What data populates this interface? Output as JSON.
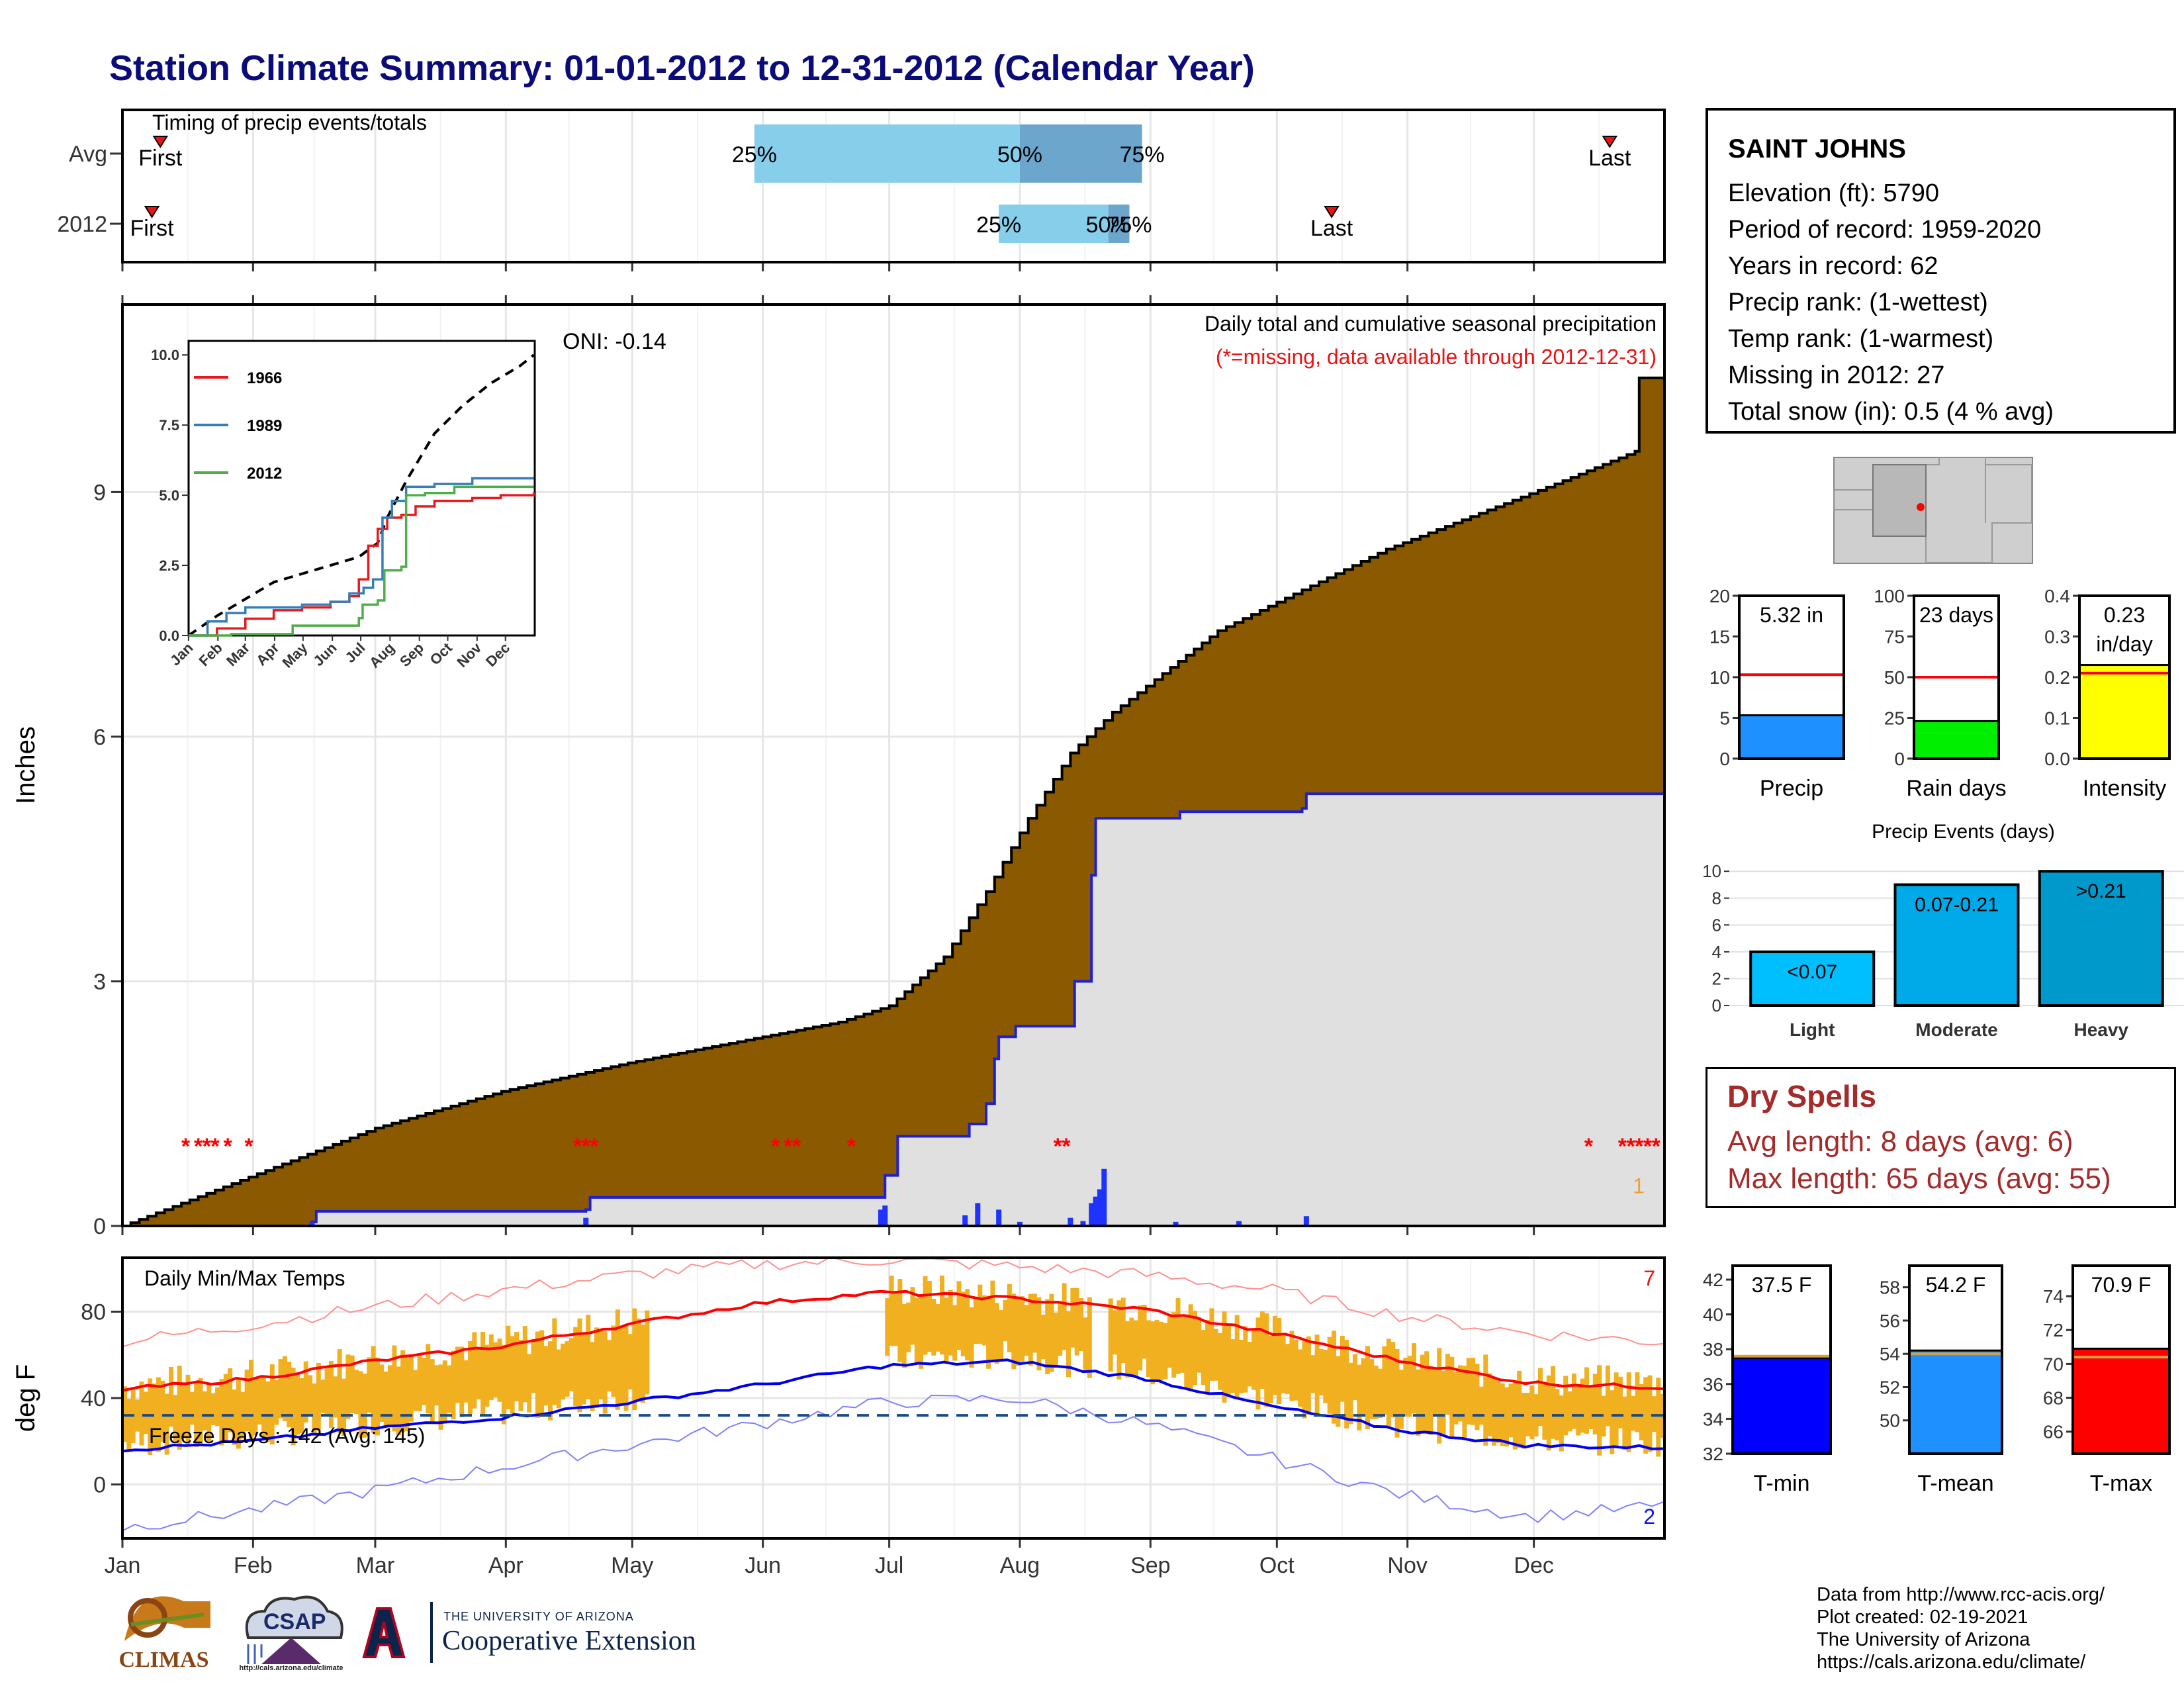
{
  "title": "Station Climate Summary: 01-01-2012 to 12-31-2012 (Calendar Year)",
  "station_info": {
    "name": "SAINT JOHNS",
    "lines": [
      "Elevation (ft): 5790",
      "Period of record: 1959-2020",
      "Years in record: 62",
      "Precip rank:  (1-wettest)",
      "Temp rank:  (1-warmest)",
      "Missing in 2012: 27",
      "Total snow (in): 0.5 (4 % avg)"
    ]
  },
  "dry_spells": {
    "title": "Dry Spells",
    "avg_length": "Avg length: 8 days (avg: 6)",
    "max_length": "Max length: 65 days (avg: 55)"
  },
  "credits": {
    "line1": "Data from http://www.rcc-acis.org/",
    "line2": "Plot created: 02-19-2021",
    "line3": "The University of Arizona",
    "line4": "https://cals.arizona.edu/climate/"
  },
  "logos": {
    "climas": "CLIMAS",
    "csap": "CSAP",
    "csap_url": "http://cals.arizona.edu/climate",
    "ua_small": "THE UNIVERSITY OF ARIZONA",
    "ua_main": "Cooperative Extension"
  },
  "colors": {
    "title": "#0b0b7a",
    "cumulative_fill": "#8b5a00",
    "avg_fill": "#e0e0e0",
    "missing_marker": "#ff0000",
    "daily_bar": "#1f33ff",
    "temp_bar": "#f0b020",
    "tmax_avg": "#ff0000",
    "tmin_avg": "#0000ee"
  },
  "chart_data": [
    {
      "type": "bar",
      "name": "timing",
      "title": "Timing of precip events/totals",
      "rows": [
        "Avg",
        "2012"
      ],
      "avg": {
        "first": "Jan 10",
        "p25": "May 30",
        "p50": "Aug 1",
        "p75": "Aug 30",
        "last": "Dec 19"
      },
      "y2012": {
        "first": "Jan 8",
        "p25": "Jul 27",
        "p50": "Aug 22",
        "p75": "Aug 27",
        "last": "Oct 14"
      },
      "labels": {
        "first": "First",
        "last": "Last",
        "p25": "25%",
        "p50": "50%",
        "p75": "75%"
      }
    },
    {
      "type": "area",
      "name": "cumulative_precip",
      "title": "Daily total and cumulative seasonal precipitation",
      "subtitle": "(*=missing, data available through 2012-12-31)",
      "oni": "ONI: -0.14",
      "ylabel": "Inches",
      "ylim": [
        0,
        11.3
      ],
      "yticks": [
        0,
        3,
        6,
        9
      ],
      "months": [
        "Jan",
        "Feb",
        "Mar",
        "Apr",
        "May",
        "Jun",
        "Jul",
        "Aug",
        "Sep",
        "Oct",
        "Nov",
        "Dec"
      ],
      "avg_cumulative": [
        [
          0,
          0
        ],
        [
          30,
          0.6
        ],
        [
          60,
          1.2
        ],
        [
          90,
          1.65
        ],
        [
          120,
          2.0
        ],
        [
          150,
          2.3
        ],
        [
          170,
          2.5
        ],
        [
          182,
          2.7
        ],
        [
          195,
          3.3
        ],
        [
          205,
          4.1
        ],
        [
          215,
          5.0
        ],
        [
          225,
          5.8
        ],
        [
          235,
          6.3
        ],
        [
          245,
          6.7
        ],
        [
          260,
          7.3
        ],
        [
          280,
          7.8
        ],
        [
          300,
          8.3
        ],
        [
          320,
          8.7
        ],
        [
          340,
          9.1
        ],
        [
          359,
          9.5
        ],
        [
          360,
          10.4
        ]
      ],
      "cumulative_2012": [
        [
          0,
          0
        ],
        [
          45,
          0.05
        ],
        [
          46,
          0.18
        ],
        [
          110,
          0.2
        ],
        [
          111,
          0.35
        ],
        [
          180,
          0.35
        ],
        [
          181,
          0.62
        ],
        [
          184,
          1.1
        ],
        [
          200,
          1.1
        ],
        [
          201,
          1.25
        ],
        [
          205,
          1.5
        ],
        [
          207,
          2.05
        ],
        [
          208,
          2.32
        ],
        [
          212,
          2.45
        ],
        [
          225,
          2.45
        ],
        [
          226,
          3.0
        ],
        [
          230,
          4.3
        ],
        [
          231,
          5.0
        ],
        [
          250,
          5.0
        ],
        [
          251,
          5.08
        ],
        [
          280,
          5.12
        ],
        [
          281,
          5.3
        ],
        [
          360,
          5.3
        ]
      ],
      "daily_2012": [
        [
          45,
          0.05
        ],
        [
          110,
          0.1
        ],
        [
          180,
          0.2
        ],
        [
          181,
          0.25
        ],
        [
          200,
          0.13
        ],
        [
          203,
          0.28
        ],
        [
          208,
          0.2
        ],
        [
          213,
          0.05
        ],
        [
          225,
          0.1
        ],
        [
          228,
          0.06
        ],
        [
          230,
          0.28
        ],
        [
          231,
          0.36
        ],
        [
          232,
          0.45
        ],
        [
          233,
          0.7
        ],
        [
          250,
          0.05
        ],
        [
          265,
          0.06
        ],
        [
          281,
          0.12
        ]
      ],
      "missing_days": [
        15,
        18,
        20,
        22,
        25,
        30,
        108,
        110,
        112,
        155,
        158,
        160,
        173,
        222,
        224,
        348,
        356,
        358,
        360,
        362,
        364
      ],
      "missing_count_label": "1",
      "inset": {
        "type": "line",
        "yticks": [
          "0.0",
          "2.5",
          "5.0",
          "7.5",
          "10.0"
        ],
        "months": [
          "Jan",
          "Feb",
          "Mar",
          "Apr",
          "May",
          "Jun",
          "Jul",
          "Aug",
          "Sep",
          "Oct",
          "Nov",
          "Dec"
        ],
        "series": [
          {
            "name": "1966",
            "color": "#e41a1c",
            "values": [
              [
                0,
                0
              ],
              [
                30,
                0.25
              ],
              [
                60,
                0.6
              ],
              [
                90,
                0.9
              ],
              [
                120,
                1.0
              ],
              [
                150,
                1.2
              ],
              [
                170,
                1.4
              ],
              [
                180,
                2.0
              ],
              [
                190,
                3.2
              ],
              [
                200,
                3.8
              ],
              [
                210,
                4.2
              ],
              [
                225,
                4.3
              ],
              [
                240,
                4.6
              ],
              [
                260,
                4.8
              ],
              [
                300,
                4.9
              ],
              [
                330,
                5.0
              ],
              [
                365,
                5.1
              ]
            ]
          },
          {
            "name": "1989",
            "color": "#377eb8",
            "values": [
              [
                0,
                0
              ],
              [
                20,
                0.5
              ],
              [
                40,
                0.8
              ],
              [
                60,
                1.0
              ],
              [
                90,
                1.0
              ],
              [
                120,
                1.1
              ],
              [
                150,
                1.2
              ],
              [
                170,
                1.5
              ],
              [
                185,
                1.7
              ],
              [
                195,
                2.0
              ],
              [
                205,
                4.2
              ],
              [
                215,
                4.8
              ],
              [
                230,
                5.3
              ],
              [
                260,
                5.4
              ],
              [
                300,
                5.6
              ],
              [
                365,
                5.6
              ]
            ]
          },
          {
            "name": "2012",
            "color": "#4daf4a",
            "values": [
              [
                0,
                0
              ],
              [
                45,
                0.05
              ],
              [
                110,
                0.35
              ],
              [
                180,
                0.62
              ],
              [
                184,
                1.1
              ],
              [
                200,
                1.25
              ],
              [
                207,
                2.32
              ],
              [
                225,
                2.45
              ],
              [
                230,
                5.0
              ],
              [
                250,
                5.08
              ],
              [
                281,
                5.3
              ],
              [
                365,
                5.3
              ]
            ]
          }
        ],
        "average": [
          [
            0,
            0
          ],
          [
            30,
            0.7
          ],
          [
            60,
            1.3
          ],
          [
            90,
            1.9
          ],
          [
            120,
            2.2
          ],
          [
            150,
            2.5
          ],
          [
            180,
            2.8
          ],
          [
            200,
            3.3
          ],
          [
            210,
            4.2
          ],
          [
            230,
            5.5
          ],
          [
            260,
            7.2
          ],
          [
            290,
            8.2
          ],
          [
            320,
            9.0
          ],
          [
            350,
            9.6
          ],
          [
            365,
            10.0
          ]
        ]
      }
    },
    {
      "type": "bar",
      "name": "temperatures",
      "title": "Daily Min/Max Temps",
      "ylabel": "deg F",
      "ylim": [
        -25,
        105
      ],
      "yticks": [
        0,
        40,
        80
      ],
      "freeze_days_label": "Freeze Days : 142 (Avg: 145)",
      "freeze_line": 32,
      "hot_days_label": "7",
      "cold_days_label": "2",
      "months": [
        "Jan",
        "Feb",
        "Mar",
        "Apr",
        "May",
        "Jun",
        "Jul",
        "Aug",
        "Sep",
        "Oct",
        "Nov",
        "Dec"
      ],
      "tmax_avg": [
        [
          0,
          44
        ],
        [
          31,
          49
        ],
        [
          59,
          57
        ],
        [
          90,
          64
        ],
        [
          120,
          74
        ],
        [
          151,
          84
        ],
        [
          181,
          89
        ],
        [
          212,
          86
        ],
        [
          243,
          81
        ],
        [
          273,
          70
        ],
        [
          304,
          57
        ],
        [
          334,
          47
        ],
        [
          365,
          45
        ]
      ],
      "tmin_avg": [
        [
          0,
          16
        ],
        [
          31,
          20
        ],
        [
          59,
          26
        ],
        [
          90,
          31
        ],
        [
          120,
          38
        ],
        [
          151,
          46
        ],
        [
          181,
          55
        ],
        [
          212,
          57
        ],
        [
          243,
          49
        ],
        [
          273,
          36
        ],
        [
          304,
          25
        ],
        [
          334,
          18
        ],
        [
          365,
          17
        ]
      ],
      "tmax_record": [
        [
          0,
          66
        ],
        [
          31,
          74
        ],
        [
          59,
          82
        ],
        [
          90,
          90
        ],
        [
          120,
          97
        ],
        [
          151,
          102
        ],
        [
          181,
          104
        ],
        [
          212,
          101
        ],
        [
          243,
          97
        ],
        [
          273,
          90
        ],
        [
          304,
          78
        ],
        [
          334,
          70
        ],
        [
          365,
          66
        ]
      ],
      "tmin_record": [
        [
          0,
          -20
        ],
        [
          31,
          -12
        ],
        [
          59,
          -3
        ],
        [
          90,
          8
        ],
        [
          120,
          18
        ],
        [
          151,
          28
        ],
        [
          181,
          38
        ],
        [
          212,
          40
        ],
        [
          243,
          28
        ],
        [
          273,
          12
        ],
        [
          304,
          -5
        ],
        [
          334,
          -15
        ],
        [
          365,
          -10
        ]
      ]
    },
    {
      "type": "bar",
      "name": "precip_total",
      "categories": [
        "Precip"
      ],
      "values": [
        5.32
      ],
      "label": "5.32 in",
      "average": 10.3,
      "ylim": [
        0,
        20
      ],
      "yticks": [
        0,
        5,
        10,
        15,
        20
      ],
      "color": "#1e90ff"
    },
    {
      "type": "bar",
      "name": "rain_days",
      "categories": [
        "Rain days"
      ],
      "values": [
        23
      ],
      "label": "23 days",
      "average": 50,
      "ylim": [
        0,
        100
      ],
      "yticks": [
        0,
        25,
        50,
        75,
        100
      ],
      "color": "#00ee00"
    },
    {
      "type": "bar",
      "name": "intensity",
      "categories": [
        "Intensity"
      ],
      "values": [
        0.23
      ],
      "label": "0.23",
      "label2": "in/day",
      "average": 0.21,
      "ylim": [
        0,
        0.4
      ],
      "yticks": [
        0.0,
        0.1,
        0.2,
        0.3,
        0.4
      ],
      "color": "#ffff00"
    },
    {
      "type": "bar",
      "name": "precip_events",
      "title": "Precip Events (days)",
      "categories": [
        "Light",
        "Moderate",
        "Heavy"
      ],
      "values": [
        4,
        9,
        10
      ],
      "bar_labels": [
        "<0.07",
        "0.07-0.21",
        ">0.21"
      ],
      "ylim": [
        0,
        10
      ],
      "yticks": [
        0,
        2,
        4,
        6,
        8,
        10
      ],
      "colors": [
        "#00bfff",
        "#00aae8",
        "#0099cc"
      ]
    },
    {
      "type": "bar",
      "name": "tmin",
      "categories": [
        "T-min"
      ],
      "values": [
        37.5
      ],
      "label": "37.5 F",
      "average": 37.6,
      "ylim": [
        32,
        42.8
      ],
      "yticks": [
        32,
        34,
        36,
        38,
        40,
        42
      ],
      "color": "#0000ff"
    },
    {
      "type": "bar",
      "name": "tmean",
      "categories": [
        "T-mean"
      ],
      "values": [
        54.2
      ],
      "label": "54.2 F",
      "average": 54.0,
      "ylim": [
        48.0,
        59.3
      ],
      "yticks": [
        50,
        52,
        54,
        56,
        58
      ],
      "color": "#1e90ff"
    },
    {
      "type": "bar",
      "name": "tmax",
      "categories": [
        "T-max"
      ],
      "values": [
        70.9
      ],
      "label": "70.9 F",
      "average": 70.4,
      "ylim": [
        64.7,
        75.8
      ],
      "yticks": [
        66,
        68,
        70,
        72,
        74
      ],
      "color": "#ff0000"
    }
  ]
}
